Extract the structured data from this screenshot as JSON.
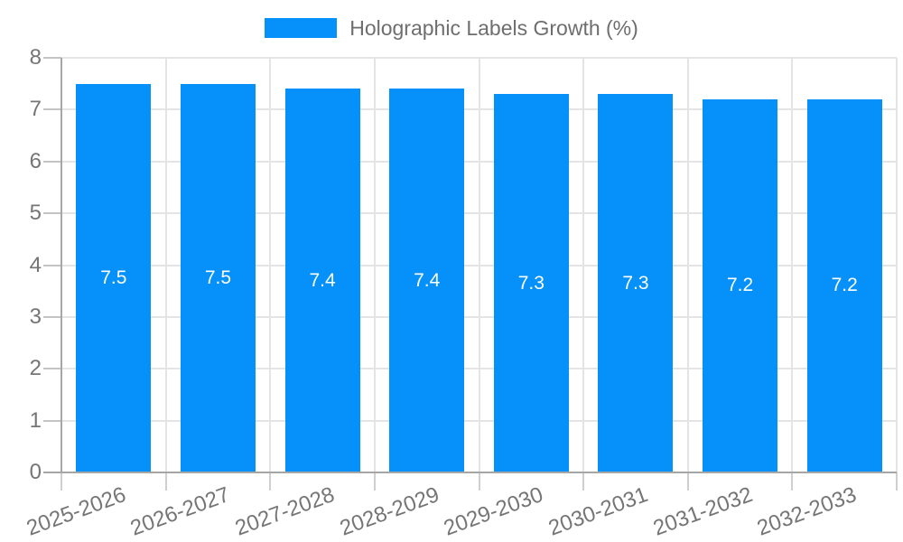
{
  "legend": {
    "label": "Holographic Labels Growth (%)",
    "swatch_color": "#0590fa"
  },
  "chart_data": {
    "type": "bar",
    "title": "Holographic Labels Growth (%)",
    "series_name": "Holographic Labels Growth (%)",
    "categories": [
      "2025-2026",
      "2026-2027",
      "2027-2028",
      "2028-2029",
      "2029-2030",
      "2030-2031",
      "2031-2032",
      "2032-2033"
    ],
    "values": [
      7.5,
      7.5,
      7.4,
      7.4,
      7.3,
      7.3,
      7.2,
      7.2
    ],
    "value_labels": [
      "7.5",
      "7.5",
      "7.4",
      "7.4",
      "7.3",
      "7.3",
      "7.2",
      "7.2"
    ],
    "xlabel": "",
    "ylabel": "",
    "ylim": [
      0,
      8
    ],
    "yticks": [
      0,
      1,
      2,
      3,
      4,
      5,
      6,
      7,
      8
    ],
    "grid": true,
    "legend_position": "top-center",
    "bar_color": "#0590fa",
    "bar_label_color": "#ffffff"
  },
  "colors": {
    "background": "#ffffff",
    "grid": "#e4e4e4",
    "axis": "#a6a6a6",
    "tick": "#c4c4c4",
    "axis_text": "#757575",
    "legend_text": "#6e6e6e"
  }
}
